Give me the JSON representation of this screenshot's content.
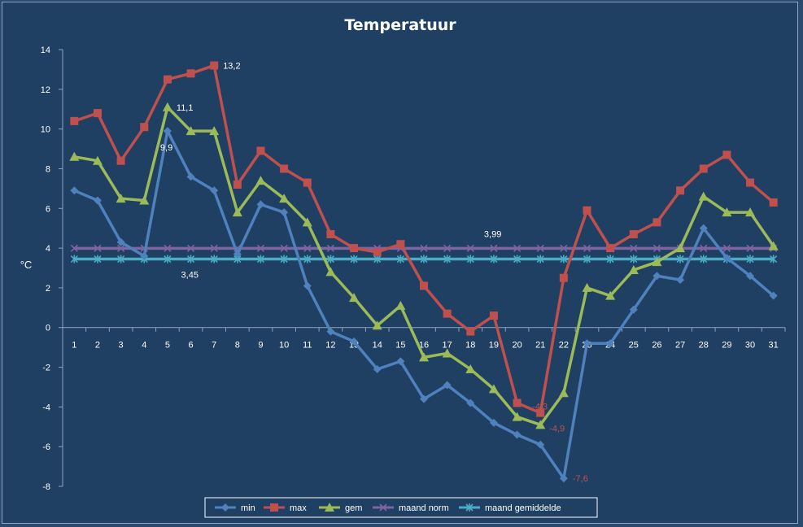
{
  "chart_data": {
    "type": "line",
    "title": "Temperatuur",
    "xlabel": "",
    "ylabel": "°C",
    "ylim": [
      -8,
      14
    ],
    "yticks": [
      -8,
      -6,
      -4,
      -2,
      0,
      2,
      4,
      6,
      8,
      10,
      12,
      14
    ],
    "categories": [
      "1",
      "2",
      "3",
      "4",
      "5",
      "6",
      "7",
      "8",
      "9",
      "10",
      "11",
      "12",
      "13",
      "14",
      "15",
      "16",
      "17",
      "18",
      "19",
      "20",
      "21",
      "22",
      "23",
      "24",
      "25",
      "26",
      "27",
      "28",
      "29",
      "30",
      "31"
    ],
    "grid": false,
    "legend_position": "bottom",
    "series": [
      {
        "name": "min",
        "color": "#4f81bd",
        "marker": "diamond",
        "values": [
          6.9,
          6.4,
          4.3,
          3.6,
          9.9,
          7.6,
          6.9,
          3.7,
          6.2,
          5.8,
          2.1,
          -0.2,
          -0.7,
          -2.1,
          -1.7,
          -3.6,
          -2.9,
          -3.8,
          -4.8,
          -5.4,
          -5.9,
          -7.6,
          -0.8,
          -0.8,
          0.9,
          2.6,
          2.4,
          5.0,
          3.5,
          2.6,
          1.6
        ]
      },
      {
        "name": "max",
        "color": "#c0504d",
        "marker": "square",
        "values": [
          10.4,
          10.8,
          8.4,
          10.1,
          12.5,
          12.8,
          13.2,
          7.2,
          8.9,
          8.0,
          7.3,
          4.7,
          4.0,
          3.8,
          4.2,
          2.1,
          0.7,
          -0.2,
          0.6,
          -3.8,
          -4.3,
          2.5,
          5.9,
          4.0,
          4.7,
          5.3,
          6.9,
          8.0,
          8.7,
          7.3,
          6.3
        ]
      },
      {
        "name": "gem",
        "color": "#9bbb59",
        "marker": "triangle",
        "values": [
          8.6,
          8.4,
          6.5,
          6.4,
          11.1,
          9.9,
          9.9,
          5.8,
          7.4,
          6.5,
          5.3,
          2.8,
          1.5,
          0.1,
          1.1,
          -1.5,
          -1.3,
          -2.1,
          -3.1,
          -4.5,
          -4.9,
          -3.3,
          2.0,
          1.6,
          2.9,
          3.3,
          4.0,
          6.6,
          5.8,
          5.8,
          4.1
        ]
      },
      {
        "name": "maand norm",
        "color": "#8064a2",
        "marker": "x",
        "values": [
          3.99,
          3.99,
          3.99,
          3.99,
          3.99,
          3.99,
          3.99,
          3.99,
          3.99,
          3.99,
          3.99,
          3.99,
          3.99,
          3.99,
          3.99,
          3.99,
          3.99,
          3.99,
          3.99,
          3.99,
          3.99,
          3.99,
          3.99,
          3.99,
          3.99,
          3.99,
          3.99,
          3.99,
          3.99,
          3.99,
          3.99
        ]
      },
      {
        "name": "maand gemiddelde",
        "color": "#4bacc6",
        "marker": "star",
        "values": [
          3.45,
          3.45,
          3.45,
          3.45,
          3.45,
          3.45,
          3.45,
          3.45,
          3.45,
          3.45,
          3.45,
          3.45,
          3.45,
          3.45,
          3.45,
          3.45,
          3.45,
          3.45,
          3.45,
          3.45,
          3.45,
          3.45,
          3.45,
          3.45,
          3.45,
          3.45,
          3.45,
          3.45,
          3.45,
          3.45,
          3.45
        ]
      }
    ],
    "annotations": [
      {
        "text": "13,2",
        "series": "max",
        "index": 6,
        "color": "#ffffff"
      },
      {
        "text": "11,1",
        "series": "gem",
        "index": 4,
        "color": "#ffffff"
      },
      {
        "text": "9,9",
        "series": "min",
        "index": 4,
        "color": "#ffffff"
      },
      {
        "text": "3,99",
        "series": "maand norm",
        "index": 18,
        "color": "#ffffff"
      },
      {
        "text": "3,45",
        "series": "maand gemiddelde",
        "index": 5,
        "color": "#ffffff"
      },
      {
        "text": "-4,3",
        "series": "max",
        "index": 20,
        "color": "#c0504d"
      },
      {
        "text": "-4,9",
        "series": "gem",
        "index": 20,
        "color": "#c0504d"
      },
      {
        "text": "-7,6",
        "series": "min",
        "index": 21,
        "color": "#c0504d"
      }
    ]
  }
}
